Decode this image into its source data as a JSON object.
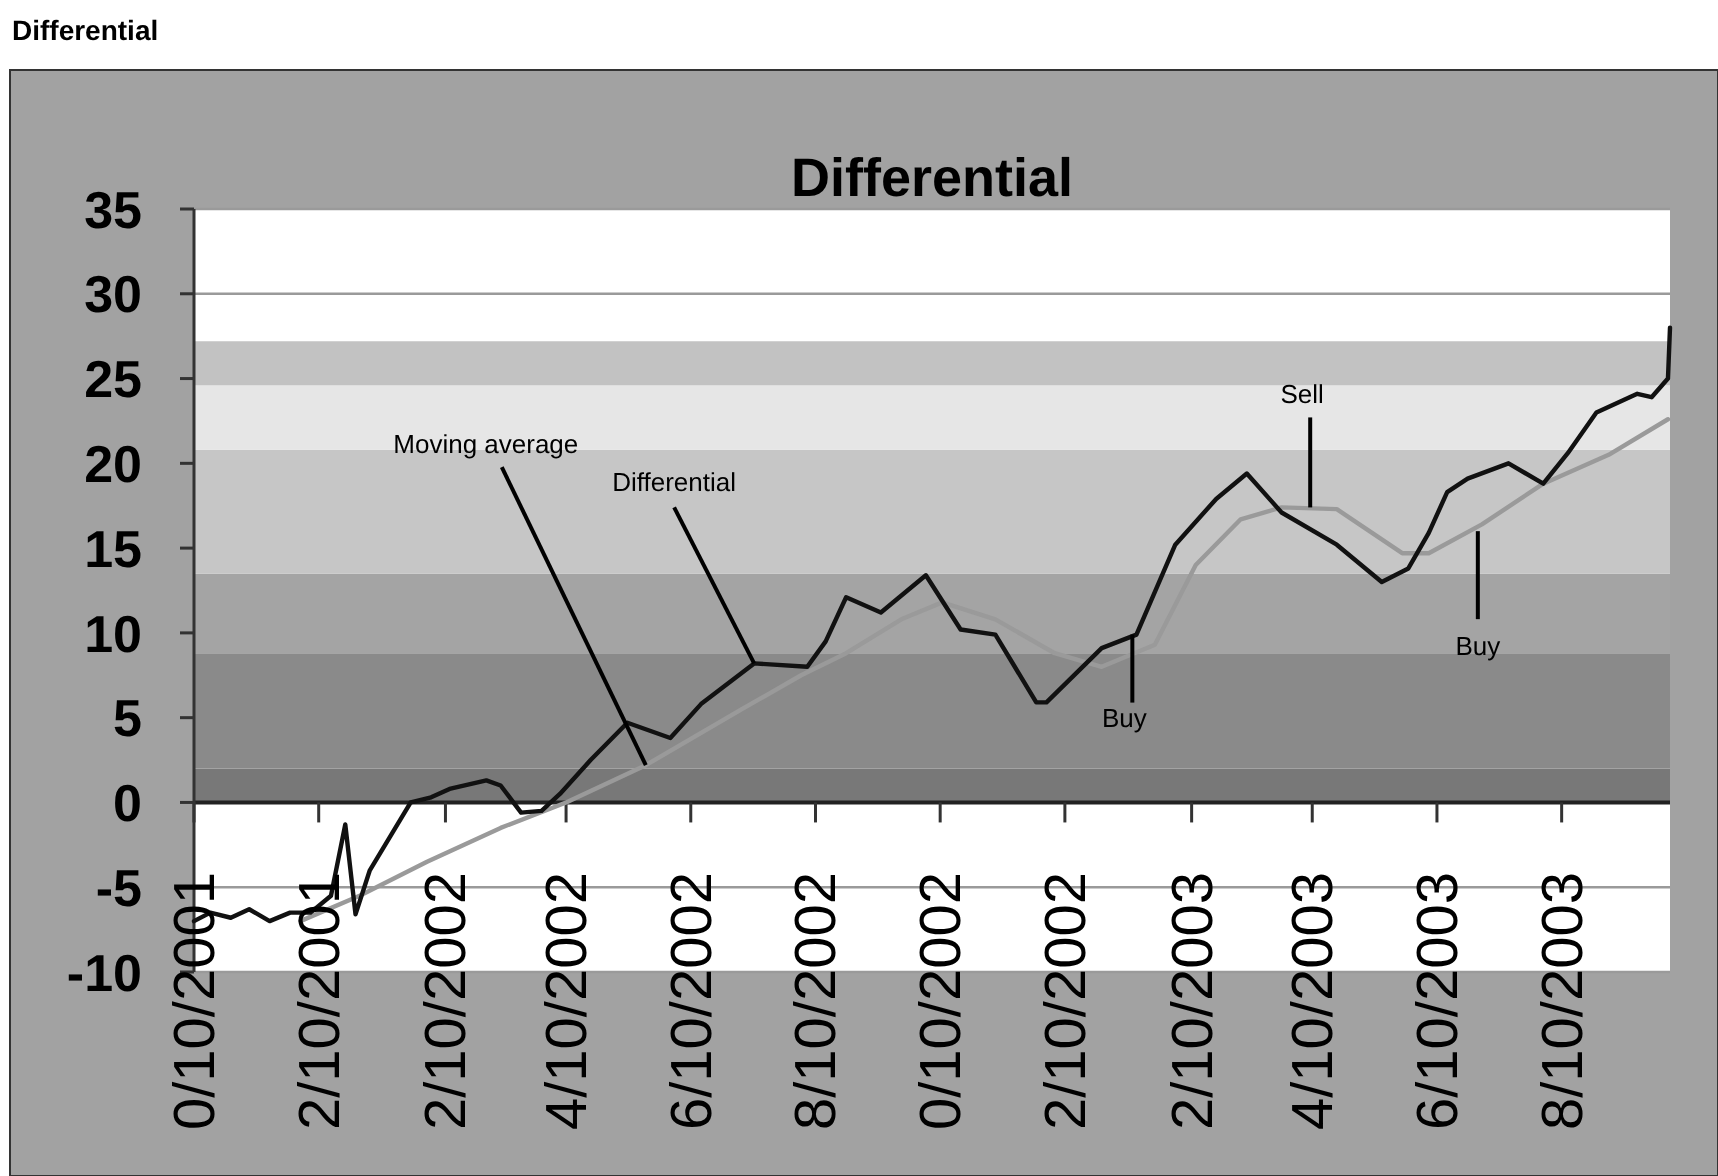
{
  "chart_data": {
    "type": "line",
    "title": "Differential",
    "annotations": [
      "Differential",
      {
        "text": "Moving average",
        "x": "2002-05-19",
        "y": 2.2
      },
      {
        "text": "Differential",
        "x": "2002-07-11",
        "y": 8.2
      },
      {
        "text": "Sell",
        "x": "2003-04-09",
        "y": 17.4
      },
      {
        "text": "Buy",
        "x": "2003-01-12",
        "y": 9.9
      },
      {
        "text": "Buy",
        "x": "2003-06-30",
        "y": 16
      }
    ],
    "xlim": [
      "2001-10-10",
      "2003-10-02"
    ],
    "xticks": [
      {
        "value": "2001-10-10",
        "label": "0/10/2001"
      },
      {
        "value": "2001-12-10",
        "label": "2/10/2001"
      },
      {
        "value": "2002-02-10",
        "label": "2/10/2002"
      },
      {
        "value": "2002-04-10",
        "label": "4/10/2002"
      },
      {
        "value": "2002-06-10",
        "label": "6/10/2002"
      },
      {
        "value": "2002-08-10",
        "label": "8/10/2002"
      },
      {
        "value": "2002-10-10",
        "label": "0/10/2002"
      },
      {
        "value": "2002-12-10",
        "label": "2/10/2002"
      },
      {
        "value": "2003-02-10",
        "label": "2/10/2003"
      },
      {
        "value": "2003-04-10",
        "label": "4/10/2003"
      },
      {
        "value": "2003-06-10",
        "label": "6/10/2003"
      },
      {
        "value": "2003-08-10",
        "label": "8/10/2003"
      }
    ],
    "ylim": [
      -10,
      35
    ],
    "yticks": [
      -10,
      -5,
      0,
      5,
      10,
      15,
      20,
      25,
      30,
      35
    ],
    "grid": "y",
    "marker": "none",
    "line_style": "solid",
    "bands": [
      {
        "axis": "y",
        "from": 0,
        "to": 2,
        "color": "#787878"
      },
      {
        "axis": "y",
        "from": 2,
        "to": 8.8,
        "color": "#8a8a8a"
      },
      {
        "axis": "y",
        "from": 8.8,
        "to": 13.5,
        "color": "#a4a4a4"
      },
      {
        "axis": "y",
        "from": 13.5,
        "to": 20.8,
        "color": "#c6c6c6"
      },
      {
        "axis": "y",
        "from": 20.8,
        "to": 24.6,
        "color": "#e6e6e6"
      },
      {
        "axis": "y",
        "from": 24.6,
        "to": 27.2,
        "color": "#c2c2c2"
      }
    ],
    "series": [
      {
        "color": "#9a9a9a",
        "x": [
          "2001-12-01",
          "2001-12-30",
          "2002-02-01",
          "2002-03-09",
          "2002-04-10",
          "2002-05-19",
          "2002-07-05",
          "2002-08-03",
          "2002-08-25",
          "2002-09-21",
          "2002-10-11",
          "2002-11-06",
          "2002-12-05",
          "2002-12-28",
          "2003-01-23",
          "2003-02-12",
          "2003-03-06",
          "2003-03-26",
          "2003-04-22",
          "2003-05-24",
          "2003-06-06",
          "2003-07-02",
          "2003-08-01",
          "2003-09-02",
          "2003-10-01"
        ],
        "values": [
          -7,
          -5.5,
          -3.5,
          -1.5,
          0,
          2.2,
          5.5,
          7.5,
          8.8,
          10.8,
          11.8,
          10.8,
          8.8,
          8,
          9.3,
          14,
          16.7,
          17.4,
          17.3,
          14.7,
          14.7,
          16.4,
          18.8,
          20.5,
          22.6
        ]
      },
      {
        "color": "#111111",
        "x": [
          "2001-10-10",
          "2001-10-18",
          "2001-10-28",
          "2001-11-06",
          "2001-11-16",
          "2001-11-26",
          "2001-12-06",
          "2001-12-16",
          "2001-12-23",
          "2001-12-28",
          "2002-01-04",
          "2002-01-14",
          "2002-01-24",
          "2002-02-03",
          "2002-02-12",
          "2002-03-02",
          "2002-03-09",
          "2002-03-19",
          "2002-03-29",
          "2002-04-07",
          "2002-04-22",
          "2002-05-10",
          "2002-05-31",
          "2002-06-15",
          "2002-07-11",
          "2002-08-06",
          "2002-08-15",
          "2002-08-25",
          "2002-09-11",
          "2002-10-03",
          "2002-10-20",
          "2002-11-06",
          "2002-11-26",
          "2002-12-01",
          "2002-12-28",
          "2003-01-14",
          "2003-02-02",
          "2003-02-22",
          "2003-03-09",
          "2003-03-26",
          "2003-04-22",
          "2003-05-14",
          "2003-05-27",
          "2003-06-06",
          "2003-06-15",
          "2003-06-25",
          "2003-07-15",
          "2003-08-01",
          "2003-08-13",
          "2003-08-27",
          "2003-09-16",
          "2003-09-23",
          "2003-10-01",
          "2003-10-02"
        ],
        "values": [
          -7,
          -6.5,
          -6.8,
          -6.3,
          -7,
          -6.5,
          -6.5,
          -5.5,
          -1.3,
          -6.6,
          -4,
          -2,
          0,
          0.3,
          0.8,
          1.3,
          1,
          -0.6,
          -0.5,
          0.5,
          2.5,
          4.7,
          3.8,
          5.8,
          8.2,
          8,
          9.5,
          12.1,
          11.2,
          13.4,
          10.2,
          9.9,
          5.9,
          5.9,
          9.1,
          9.9,
          15.2,
          17.9,
          19.4,
          17.1,
          15.2,
          13,
          13.8,
          15.9,
          18.3,
          19.1,
          20,
          18.8,
          20.6,
          23,
          24.1,
          23.9,
          25,
          28
        ]
      }
    ]
  }
}
